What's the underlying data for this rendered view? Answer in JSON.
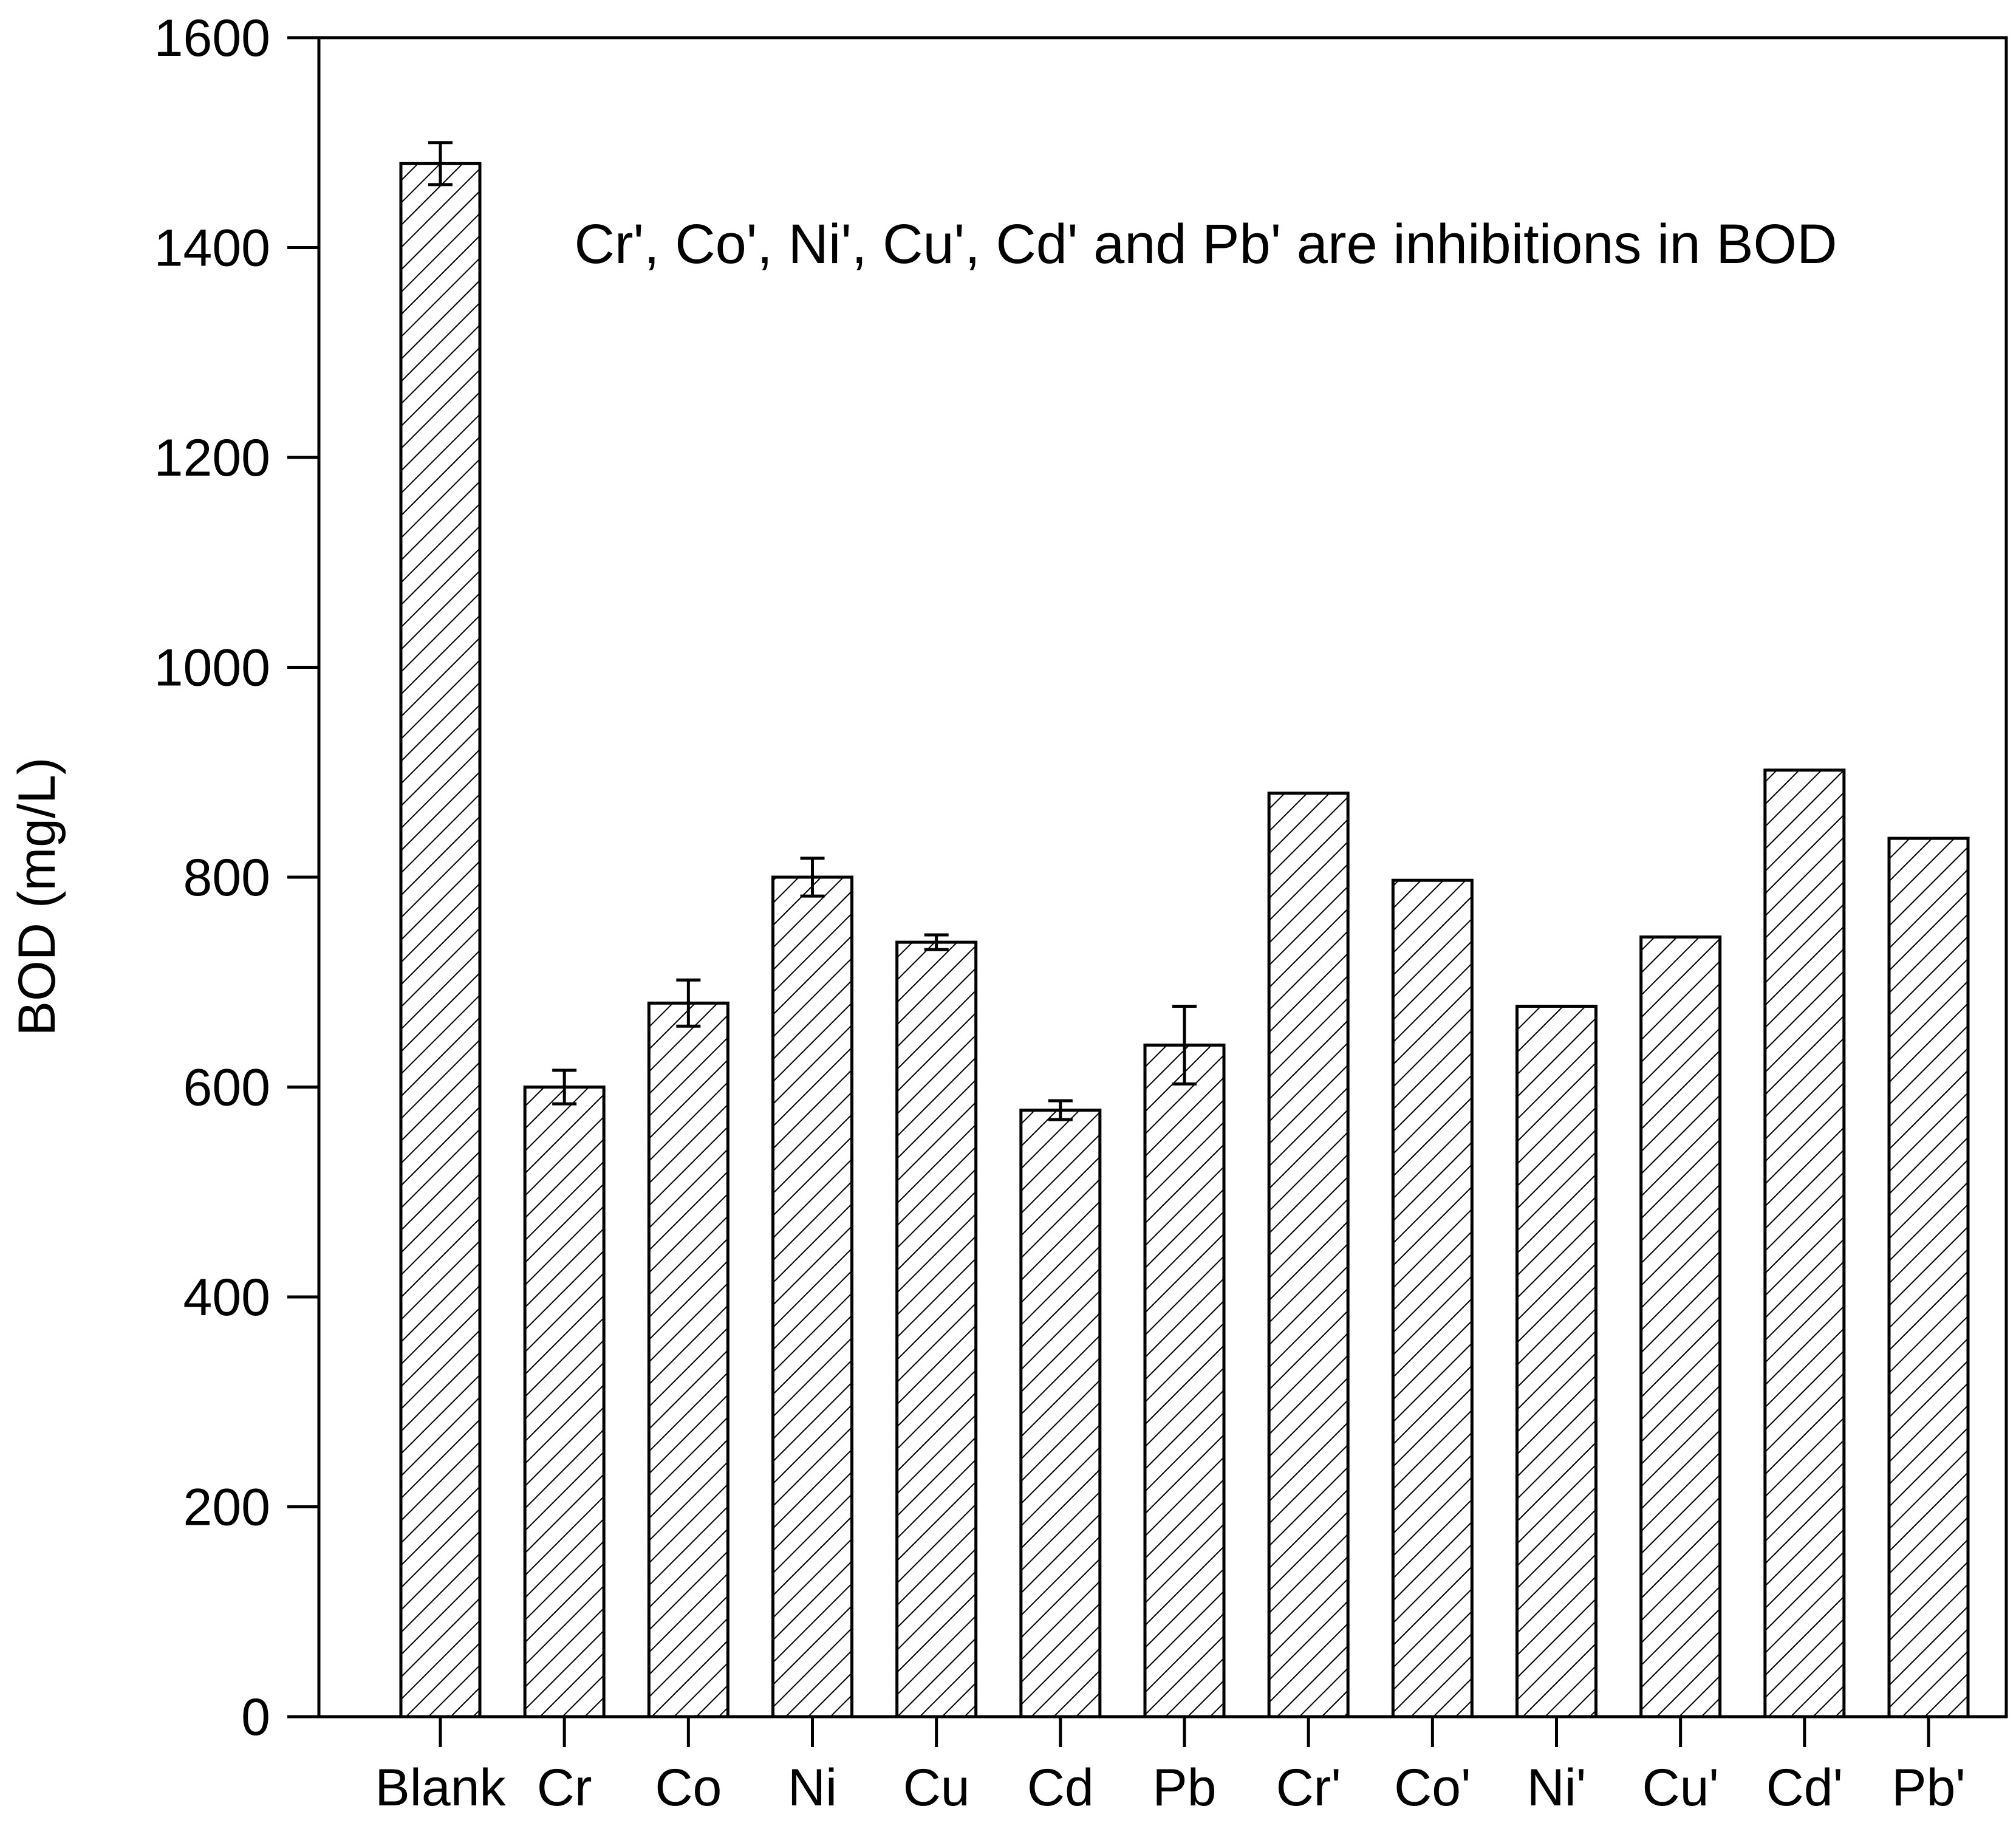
{
  "chart_data": {
    "type": "bar",
    "categories": [
      "Blank",
      "Cr",
      "Co",
      "Ni",
      "Cu",
      "Cd",
      "Pb",
      "Cr'",
      "Co'",
      "Ni'",
      "Cu'",
      "Cd'",
      "Pb'"
    ],
    "values": [
      1480,
      600,
      680,
      800,
      738,
      578,
      640,
      880,
      797,
      677,
      743,
      902,
      837
    ],
    "errors": [
      20,
      16,
      22,
      18,
      7,
      9,
      37,
      null,
      null,
      null,
      null,
      null,
      null
    ],
    "ylabel": "BOD (mg/L)",
    "xlabel": "",
    "ylim": [
      0,
      1600
    ],
    "yticks": [
      0,
      200,
      400,
      600,
      800,
      1000,
      1200,
      1400,
      1600
    ],
    "annotation": "Cr', Co', Ni', Cu', Cd' and Pb' are inhibitions in BOD",
    "fill_pattern": "diagonal-hatch",
    "bar_color": "#000000",
    "background": "#ffffff",
    "grid": false
  }
}
